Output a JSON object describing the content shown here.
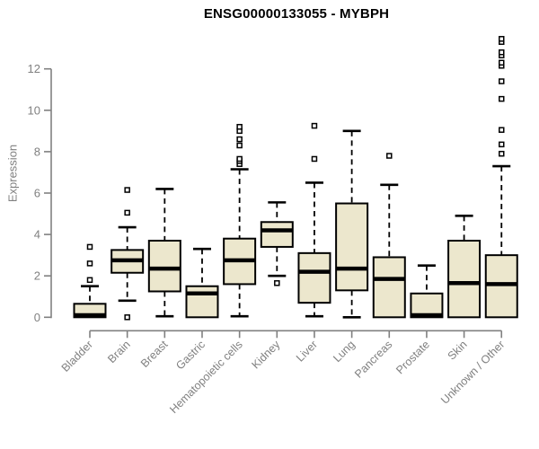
{
  "page": {
    "background": "#ffffff"
  },
  "chart_data": {
    "type": "boxplot",
    "title": "ENSG00000133055 - MYBPH",
    "ylabel": "Expression",
    "xlabel": "",
    "yticks": [
      0,
      2,
      4,
      6,
      8,
      10,
      12
    ],
    "ylim": [
      0,
      13.6
    ],
    "grid": false,
    "legend": "none",
    "categories": [
      "Bladder",
      "Brain",
      "Breast",
      "Gastric",
      "Hematopoietic cells",
      "Kidney",
      "Liver",
      "Lung",
      "Pancreas",
      "Prostate",
      "Skin",
      "Unknown / Other"
    ],
    "boxes": [
      {
        "label": "Bladder",
        "whisker_low": 0,
        "q1": 0,
        "median": 0.1,
        "q3": 0.65,
        "whisker_high": 1.5,
        "outliers": [
          1.8,
          2.6,
          3.4
        ]
      },
      {
        "label": "Brain",
        "whisker_low": 0.8,
        "q1": 2.15,
        "median": 2.75,
        "q3": 3.25,
        "whisker_high": 4.35,
        "outliers": [
          0,
          5.05,
          6.15
        ]
      },
      {
        "label": "Breast",
        "whisker_low": 0.05,
        "q1": 1.25,
        "median": 2.35,
        "q3": 3.7,
        "whisker_high": 6.2,
        "outliers": []
      },
      {
        "label": "Gastric",
        "whisker_low": 0,
        "q1": 0,
        "median": 1.15,
        "q3": 1.5,
        "whisker_high": 3.3,
        "outliers": []
      },
      {
        "label": "Hematopoietic cells",
        "whisker_low": 0.05,
        "q1": 1.6,
        "median": 2.75,
        "q3": 3.8,
        "whisker_high": 7.15,
        "outliers": [
          7.4,
          7.55,
          7.65,
          8.3,
          8.6,
          9.0,
          9.2
        ]
      },
      {
        "label": "Kidney",
        "whisker_low": 2.0,
        "q1": 3.4,
        "median": 4.2,
        "q3": 4.6,
        "whisker_high": 5.55,
        "outliers": [
          1.65
        ]
      },
      {
        "label": "Liver",
        "whisker_low": 0.05,
        "q1": 0.7,
        "median": 2.2,
        "q3": 3.1,
        "whisker_high": 6.5,
        "outliers": [
          7.65,
          9.25
        ]
      },
      {
        "label": "Lung",
        "whisker_low": 0,
        "q1": 1.3,
        "median": 2.35,
        "q3": 5.5,
        "whisker_high": 9.0,
        "outliers": []
      },
      {
        "label": "Pancreas",
        "whisker_low": 0,
        "q1": 0,
        "median": 1.85,
        "q3": 2.9,
        "whisker_high": 6.4,
        "outliers": [
          7.8
        ]
      },
      {
        "label": "Prostate",
        "whisker_low": 0,
        "q1": 0,
        "median": 0.1,
        "q3": 1.15,
        "whisker_high": 2.5,
        "outliers": []
      },
      {
        "label": "Skin",
        "whisker_low": 0,
        "q1": 0,
        "median": 1.65,
        "q3": 3.7,
        "whisker_high": 4.9,
        "outliers": []
      },
      {
        "label": "Unknown / Other",
        "whisker_low": 0,
        "q1": 0,
        "median": 1.6,
        "q3": 3.0,
        "whisker_high": 7.3,
        "outliers": [
          7.9,
          8.35,
          9.05,
          10.55,
          11.4,
          12.15,
          12.3,
          12.65,
          12.8,
          13.3,
          13.45
        ]
      }
    ],
    "colors": {
      "box_fill": "#ECE7CD",
      "box_stroke": "#000000",
      "median": "#000000",
      "whisker": "#000000",
      "outlier_stroke": "#000000",
      "outlier_fill": "#ffffff",
      "axis": "#808080",
      "tick_label": "#808080",
      "title": "#000000"
    }
  }
}
